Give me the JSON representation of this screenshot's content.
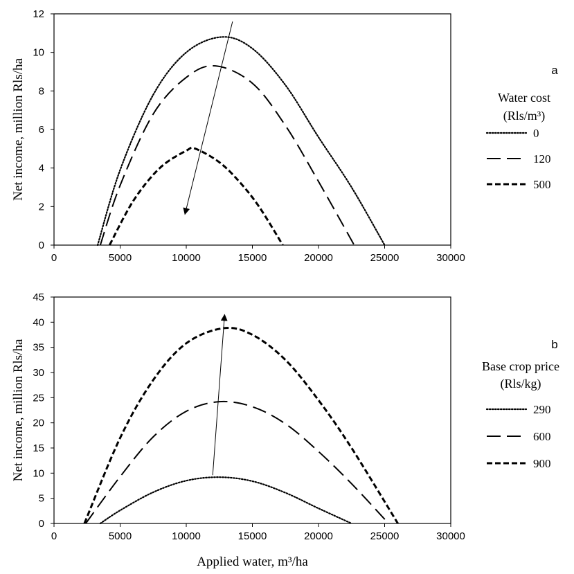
{
  "chart_data": [
    {
      "type": "line",
      "panel": "a",
      "title": "",
      "xlabel": "",
      "ylabel": "Net income, million Rls/ha",
      "xlim": [
        0,
        30000
      ],
      "ylim": [
        0,
        12
      ],
      "x_ticks": [
        0,
        5000,
        10000,
        15000,
        20000,
        25000,
        30000
      ],
      "y_ticks": [
        0,
        2,
        4,
        6,
        8,
        10,
        12
      ],
      "legend": {
        "title_line1": "Water cost",
        "title_line2": "(Rls/m³)",
        "placement": "right"
      },
      "arrow": {
        "from": [
          13500,
          11.6
        ],
        "to": [
          9900,
          1.6
        ]
      },
      "series": [
        {
          "name": "0",
          "style": "dotted",
          "x": [
            3300,
            5000,
            7500,
            10000,
            12700,
            15000,
            17500,
            20000,
            22500,
            25000
          ],
          "y": [
            0,
            3.9,
            7.8,
            10.0,
            10.8,
            10.2,
            8.3,
            5.6,
            3.0,
            0
          ]
        },
        {
          "name": "120",
          "style": "long-dash",
          "x": [
            3500,
            5000,
            7500,
            10000,
            12200,
            15000,
            17500,
            20000,
            22700
          ],
          "y": [
            0,
            3.1,
            6.8,
            8.7,
            9.3,
            8.4,
            6.2,
            3.3,
            0
          ]
        },
        {
          "name": "500",
          "style": "short-dash",
          "x": [
            4200,
            6000,
            8000,
            10000,
            10700,
            12500,
            14000,
            15500,
            17300
          ],
          "y": [
            0,
            2.3,
            4.0,
            4.9,
            5.0,
            4.3,
            3.3,
            2.0,
            0
          ]
        }
      ]
    },
    {
      "type": "line",
      "panel": "b",
      "title": "",
      "xlabel": "Applied water, m³/ha",
      "ylabel": "Net income, million Rls/ha",
      "xlim": [
        0,
        30000
      ],
      "ylim": [
        0,
        45
      ],
      "x_ticks": [
        0,
        5000,
        10000,
        15000,
        20000,
        25000,
        30000
      ],
      "y_ticks": [
        0,
        5,
        10,
        15,
        20,
        25,
        30,
        35,
        40,
        45
      ],
      "legend": {
        "title_line1": "Base crop price",
        "title_line2": "(Rls/kg)",
        "placement": "right"
      },
      "arrow": {
        "from": [
          12000,
          9.6
        ],
        "to": [
          12900,
          41.5
        ]
      },
      "series": [
        {
          "name": "290",
          "style": "dotted",
          "x": [
            3500,
            5000,
            7500,
            10000,
            12500,
            15000,
            17500,
            20000,
            22500
          ],
          "y": [
            0,
            2.6,
            6.2,
            8.5,
            9.2,
            8.4,
            6.1,
            3.0,
            0
          ]
        },
        {
          "name": "600",
          "style": "long-dash",
          "x": [
            2400,
            5000,
            7500,
            10000,
            12500,
            15000,
            17500,
            20000,
            22500,
            25300
          ],
          "y": [
            0,
            9.3,
            17.2,
            22.3,
            24.2,
            23.2,
            19.8,
            14.3,
            7.9,
            0
          ]
        },
        {
          "name": "900",
          "style": "short-dash",
          "x": [
            2300,
            5000,
            7500,
            10000,
            12800,
            15000,
            17500,
            20000,
            22500,
            26000
          ],
          "y": [
            0,
            17.0,
            28.5,
            35.8,
            38.8,
            37.5,
            32.5,
            24.5,
            15.0,
            0
          ]
        }
      ]
    }
  ]
}
